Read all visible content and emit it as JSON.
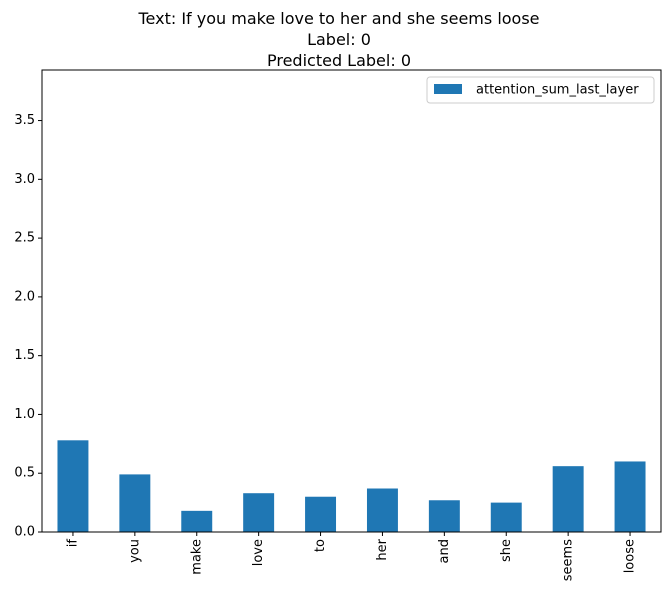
{
  "chart_data": {
    "type": "bar",
    "title_lines": [
      "Text: If you make love to her and she seems loose",
      "Label: 0",
      "Predicted Label: 0"
    ],
    "categories": [
      "if",
      "you",
      "make",
      "love",
      "to",
      "her",
      "and",
      "she",
      "seems",
      "loose"
    ],
    "series": [
      {
        "name": "attention_sum_last_layer",
        "values": [
          0.78,
          0.49,
          0.18,
          0.33,
          0.3,
          0.37,
          0.27,
          0.25,
          0.56,
          0.6
        ],
        "color": "#1f77b4"
      }
    ],
    "yticks": [
      "0.0",
      "0.5",
      "1.0",
      "1.5",
      "2.0",
      "2.5",
      "3.0",
      "3.5"
    ],
    "ytick_values": [
      0.0,
      0.5,
      1.0,
      1.5,
      2.0,
      2.5,
      3.0,
      3.5
    ],
    "ylim": [
      0,
      3.93
    ],
    "xlabel": "",
    "ylabel": "",
    "grid": false,
    "legend_position": "top-right"
  }
}
